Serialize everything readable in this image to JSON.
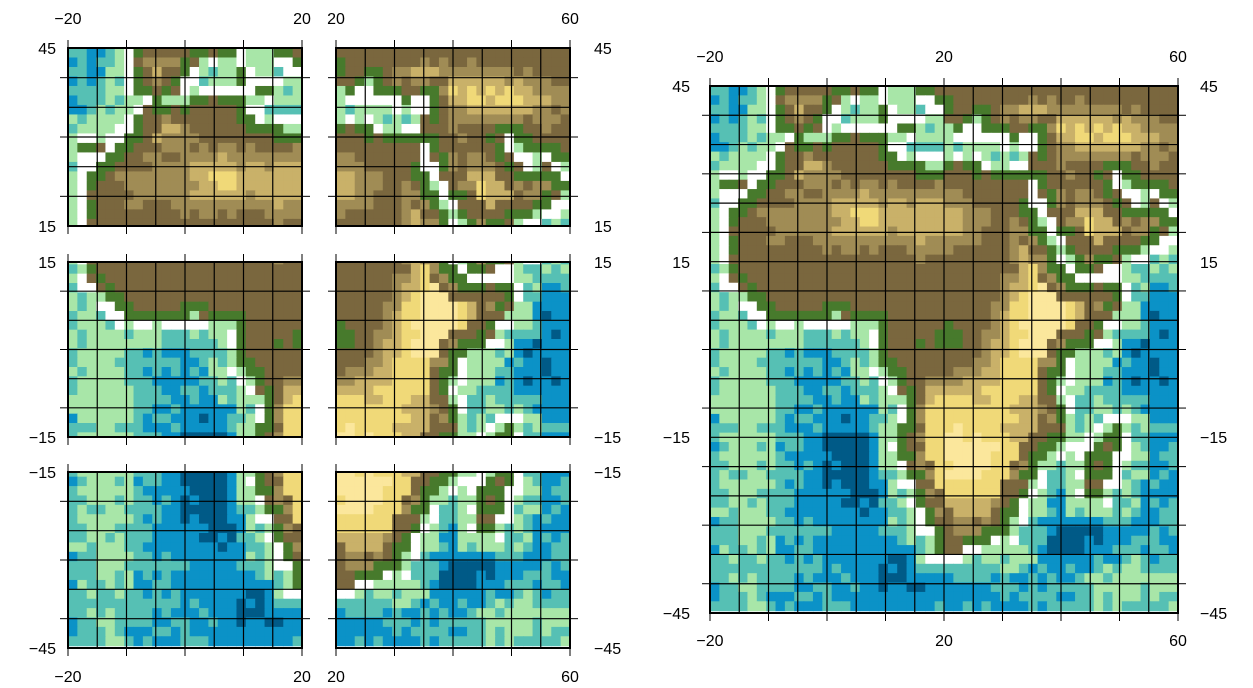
{
  "map": {
    "projection": "equirectangular",
    "color_scale": "topography/bathymetry (deep ocean dark blue → shelf light green → lowland dark green → plateaus brown → highlands yellow)",
    "grid": "10 degree graticule",
    "colors": {
      "deep_ocean": "#005a87",
      "ocean": "#0b92c7",
      "shelf_ocean": "#56c0b4",
      "shallow": "#a8e6a8",
      "coast": "#ffffff",
      "lowland": "#477a2c",
      "low_plateau": "#7a673e",
      "plateau": "#a08c55",
      "upland": "#c9b169",
      "highland": "#f0d978",
      "high": "#fbe79c"
    }
  },
  "panels": [
    {
      "id": "panel-nw",
      "lon": [
        -20,
        20
      ],
      "lat": [
        15,
        45
      ],
      "labels": {
        "top": [
          "−20",
          "20"
        ],
        "left": [
          "45",
          "15"
        ]
      }
    },
    {
      "id": "panel-ne",
      "lon": [
        20,
        60
      ],
      "lat": [
        15,
        45
      ],
      "labels": {
        "top": [
          "20",
          "60"
        ],
        "right": [
          "45",
          "15"
        ]
      }
    },
    {
      "id": "panel-w",
      "lon": [
        -20,
        20
      ],
      "lat": [
        -15,
        15
      ],
      "labels": {
        "left": [
          "15",
          "−15"
        ]
      }
    },
    {
      "id": "panel-e",
      "lon": [
        20,
        60
      ],
      "lat": [
        -15,
        15
      ],
      "labels": {
        "right": [
          "15",
          "−15"
        ]
      }
    },
    {
      "id": "panel-sw",
      "lon": [
        -20,
        20
      ],
      "lat": [
        -45,
        -15
      ],
      "labels": {
        "left": [
          "−15",
          "−45"
        ],
        "bottom": [
          "−20",
          "20"
        ]
      }
    },
    {
      "id": "panel-se",
      "lon": [
        20,
        60
      ],
      "lat": [
        -45,
        -15
      ],
      "labels": {
        "right": [
          "−15",
          "−45"
        ],
        "bottom": [
          "20",
          "60"
        ]
      }
    },
    {
      "id": "panel-full",
      "lon": [
        -20,
        60
      ],
      "lat": [
        -45,
        45
      ],
      "labels": {
        "top": [
          "−20",
          "20",
          "60"
        ],
        "bottom": [
          "−20",
          "20",
          "60"
        ],
        "left": [
          "45",
          "15",
          "−15",
          "−45"
        ],
        "right": [
          "45",
          "15",
          "−15",
          "−45"
        ]
      }
    }
  ]
}
